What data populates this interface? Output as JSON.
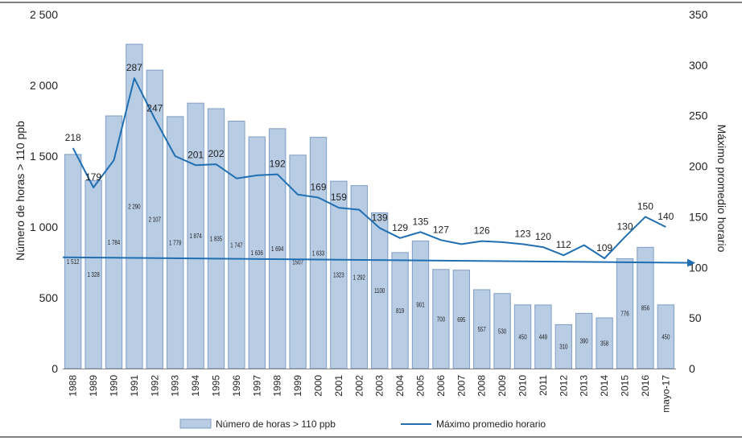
{
  "chart_data": {
    "type": "bar",
    "title": "",
    "categories": [
      "1988",
      "1989",
      "1990",
      "1991",
      "1992",
      "1993",
      "1994",
      "1995",
      "1996",
      "1997",
      "1998",
      "1999",
      "2000",
      "2001",
      "2002",
      "2003",
      "2004",
      "2005",
      "2006",
      "2007",
      "2008",
      "2009",
      "2010",
      "2011",
      "2012",
      "2013",
      "2014",
      "2015",
      "2016",
      "mayo-17"
    ],
    "bar_labels": [
      "1 512",
      "1 328",
      "1 784",
      "2 290",
      "2 107",
      "1 779",
      "1 874",
      "1 835",
      "1 747",
      "1 636",
      "1 694",
      "1507",
      "1 633",
      "1323",
      "1 292",
      "1100",
      "819",
      "901",
      "700",
      "695",
      "557",
      "530",
      "450",
      "449",
      "310",
      "390",
      "358",
      "776",
      "856",
      "450"
    ],
    "series": [
      {
        "name": "Número de horas > 110 ppb",
        "axis": "left",
        "kind": "bar",
        "color": "#b8cce4",
        "stroke": "#7f9ec4",
        "values": [
          1512,
          1328,
          1784,
          2290,
          2107,
          1779,
          1874,
          1835,
          1747,
          1636,
          1694,
          1507,
          1633,
          1323,
          1292,
          1100,
          819,
          901,
          700,
          695,
          557,
          530,
          450,
          449,
          310,
          390,
          358,
          776,
          856,
          450
        ]
      },
      {
        "name": "Máximo promedio horario",
        "axis": "right",
        "kind": "line",
        "color": "#1f6fb2",
        "values": [
          218,
          179,
          206,
          287,
          247,
          210,
          201,
          202,
          188,
          191,
          192,
          172,
          169,
          159,
          157,
          139,
          129,
          135,
          127,
          123,
          126,
          125,
          123,
          120,
          112,
          122,
          109,
          130,
          150,
          140
        ],
        "labels": [
          "218",
          "179",
          "",
          "287",
          "247",
          "",
          "201",
          "202",
          "",
          "",
          "192",
          "",
          "169",
          "159",
          "",
          "139",
          "129",
          "135",
          "127",
          "",
          "126",
          "",
          "123",
          "120",
          "112",
          "",
          "109",
          "130",
          "150",
          "140"
        ]
      }
    ],
    "trend_line": {
      "axis": "right",
      "start": 110,
      "end": 104.5,
      "color": "#1f6fb2"
    },
    "ylabel": "Número de horas > 110 ppb",
    "y2label": "Máximo promedio horario",
    "xlabel": "",
    "ylim": [
      0,
      2500
    ],
    "y2lim": [
      0,
      350
    ],
    "yticks": [
      "0",
      "500",
      "1 000",
      "1 500",
      "2 000",
      "2 500"
    ],
    "y2ticks": [
      "0",
      "50",
      "100",
      "150",
      "200",
      "250",
      "300",
      "350"
    ],
    "legend": {
      "position": "bottom",
      "bar_label": "Número de horas > 110 ppb",
      "line_label": "Máximo promedio horario"
    }
  }
}
